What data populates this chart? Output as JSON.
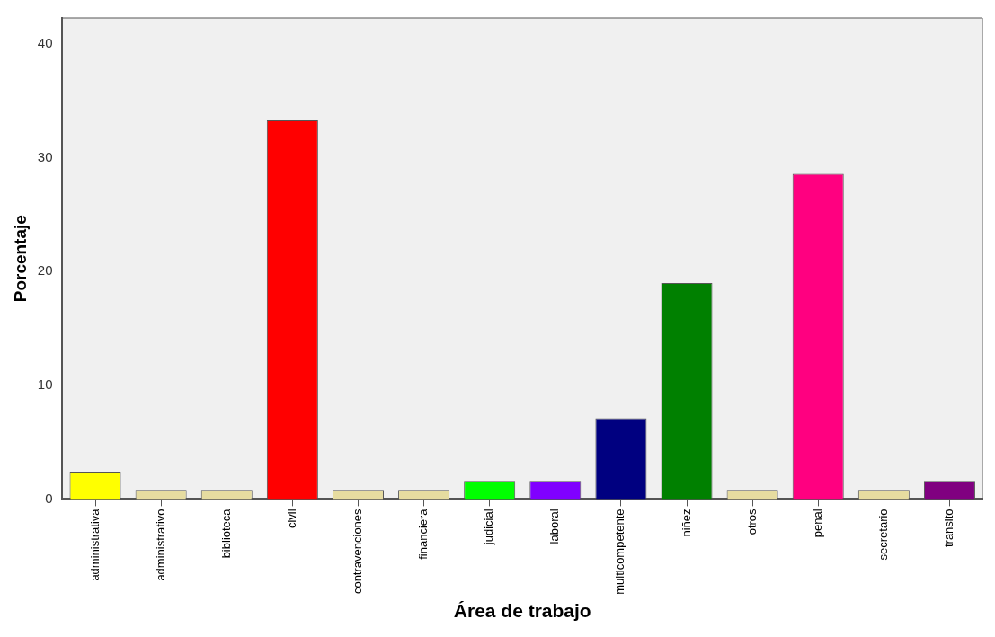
{
  "chart_data": {
    "type": "bar",
    "xlabel": "Área de trabajo",
    "ylabel": "Porcentaje",
    "categories": [
      "administrativa",
      "administrativo",
      "biblioteca",
      "civil",
      "contravenciones",
      "financiera",
      "judicial",
      "laboral",
      "multicompetente",
      "niñez",
      "otros",
      "penal",
      "secretario",
      "transito"
    ],
    "values": [
      2.4,
      0.8,
      0.8,
      33.3,
      0.8,
      0.8,
      1.6,
      1.6,
      7.1,
      19.0,
      0.8,
      28.6,
      0.8,
      1.6
    ],
    "colors": [
      "#ffff00",
      "#e6dca0",
      "#e6dca0",
      "#ff0000",
      "#e6dca0",
      "#e6dca0",
      "#00ff00",
      "#8000ff",
      "#000080",
      "#008000",
      "#e6dca0",
      "#ff0080",
      "#e6dca0",
      "#800080"
    ],
    "ylim": [
      0,
      42.3
    ],
    "yticks": [
      0,
      10,
      20,
      30,
      40
    ],
    "grid": false,
    "legend": false
  }
}
